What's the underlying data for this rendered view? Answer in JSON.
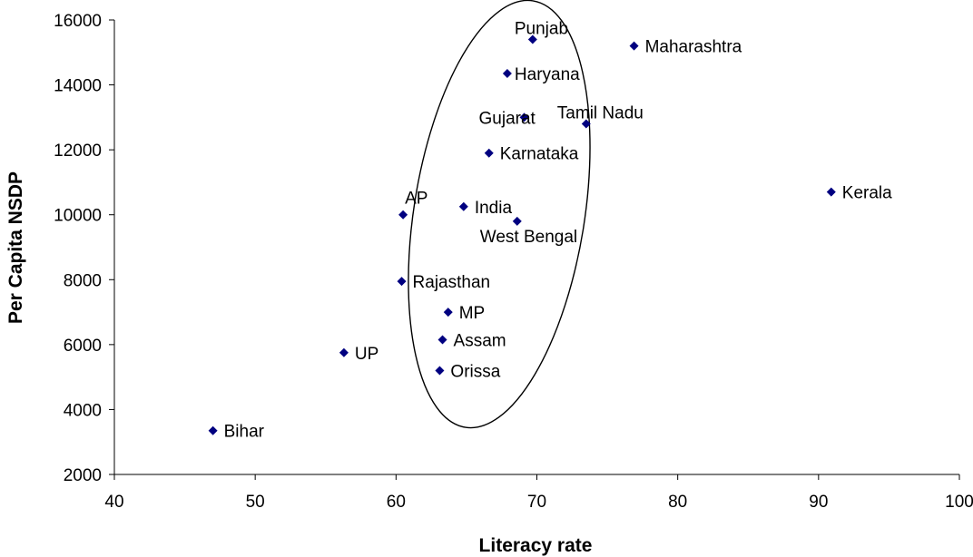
{
  "chart_data": {
    "type": "scatter",
    "title": "",
    "xlabel": "Literacy rate",
    "ylabel": "Per Capita NSDP",
    "xlim": [
      40,
      100
    ],
    "ylim": [
      2000,
      16000
    ],
    "xticks": [
      40,
      50,
      60,
      70,
      80,
      90,
      100
    ],
    "yticks": [
      2000,
      4000,
      6000,
      8000,
      10000,
      12000,
      14000,
      16000
    ],
    "grid": false,
    "legend": "none",
    "marker_color": "#000080",
    "points": [
      {
        "label": "Punjab",
        "x": 69.7,
        "y": 15400
      },
      {
        "label": "Maharashtra",
        "x": 76.9,
        "y": 15200
      },
      {
        "label": "Haryana",
        "x": 67.9,
        "y": 14350
      },
      {
        "label": "Gujarat",
        "x": 69.1,
        "y": 13000
      },
      {
        "label": "Tamil Nadu",
        "x": 73.5,
        "y": 12800
      },
      {
        "label": "Karnataka",
        "x": 66.6,
        "y": 11900
      },
      {
        "label": "Kerala",
        "x": 90.9,
        "y": 10700
      },
      {
        "label": "India",
        "x": 64.8,
        "y": 10250
      },
      {
        "label": "AP",
        "x": 60.5,
        "y": 10000
      },
      {
        "label": "West Bengal",
        "x": 68.6,
        "y": 9800
      },
      {
        "label": "Rajasthan",
        "x": 60.4,
        "y": 7950
      },
      {
        "label": "MP",
        "x": 63.7,
        "y": 7000
      },
      {
        "label": "Assam",
        "x": 63.3,
        "y": 6150
      },
      {
        "label": "UP",
        "x": 56.3,
        "y": 5750
      },
      {
        "label": "Orissa",
        "x": 63.1,
        "y": 5200
      },
      {
        "label": "Bihar",
        "x": 47.0,
        "y": 3350
      }
    ],
    "annotations": [
      {
        "type": "ellipse",
        "note": "encloses Punjab through Orissa cluster"
      }
    ]
  }
}
